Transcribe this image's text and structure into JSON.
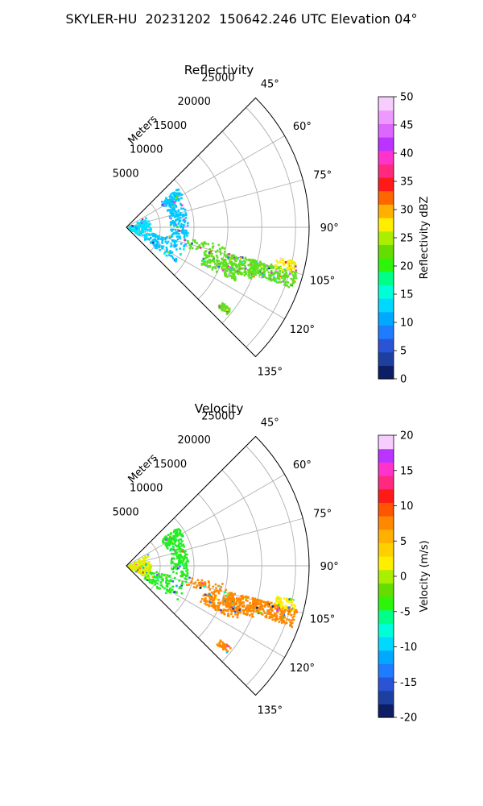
{
  "figure": {
    "title": "SKYLER-HU  20231202  150642.246 UTC Elevation 04°"
  },
  "chart_data": [
    {
      "type": "polar-sector",
      "title": "Reflectivity",
      "azimuth_ticks": [
        "45°",
        "60°",
        "75°",
        "90°",
        "105°",
        "120°",
        "135°"
      ],
      "azimuth_range_deg": [
        45,
        135
      ],
      "range_label": "Meters",
      "range_ticks": [
        "5000",
        "10000",
        "15000",
        "20000",
        "25000"
      ],
      "range_max_m": 27000,
      "grid": true,
      "colorbar": {
        "label": "Reflectivity dBZ",
        "min": 0,
        "max": 50,
        "ticks": [
          "0",
          "5",
          "10",
          "15",
          "20",
          "25",
          "30",
          "35",
          "40",
          "45",
          "50"
        ],
        "colors": [
          "#0d1e66",
          "#1c3fa0",
          "#2a53d6",
          "#1f7cff",
          "#00a8ff",
          "#00d8ff",
          "#00ffd8",
          "#00ff88",
          "#2cf50a",
          "#66dd00",
          "#aaee00",
          "#ffee00",
          "#ffb000",
          "#ff6600",
          "#ff1a1a",
          "#ff2a7f",
          "#ff33cc",
          "#bb33ff",
          "#dd66ff",
          "#ee99ff",
          "#f7ccff"
        ]
      },
      "echoes": [
        {
          "name": "near-range clutter",
          "color": "#00e0ff"
        },
        {
          "name": "ring echo",
          "color": "#00c8ff"
        },
        {
          "name": "southeast cells",
          "color": "#60e020"
        }
      ]
    },
    {
      "type": "polar-sector",
      "title": "Velocity",
      "azimuth_ticks": [
        "45°",
        "60°",
        "75°",
        "90°",
        "105°",
        "120°",
        "135°"
      ],
      "azimuth_range_deg": [
        45,
        135
      ],
      "range_label": "Meters",
      "range_ticks": [
        "5000",
        "10000",
        "15000",
        "20000",
        "25000"
      ],
      "range_max_m": 27000,
      "grid": true,
      "colorbar": {
        "label": "Velocity (m/s)",
        "min": -20,
        "max": 20,
        "ticks": [
          "-20",
          "-15",
          "-10",
          "-5",
          "0",
          "5",
          "10",
          "15",
          "20"
        ],
        "colors": [
          "#0d1e66",
          "#1c3fa0",
          "#2a53d6",
          "#1f7cff",
          "#00a8ff",
          "#00d8ff",
          "#00ffd8",
          "#00ff88",
          "#2cf50a",
          "#66dd00",
          "#aaee00",
          "#ffee00",
          "#ffd000",
          "#ffb000",
          "#ff8800",
          "#ff5500",
          "#ff1a1a",
          "#ff2a7f",
          "#ff33cc",
          "#bb33ff",
          "#f7ccff"
        ]
      },
      "echoes": [
        {
          "name": "near-range clutter",
          "color": "#ddee00"
        },
        {
          "name": "ring echo",
          "color": "#22ee22"
        },
        {
          "name": "southeast cells",
          "color": "#ff8800"
        }
      ]
    }
  ]
}
